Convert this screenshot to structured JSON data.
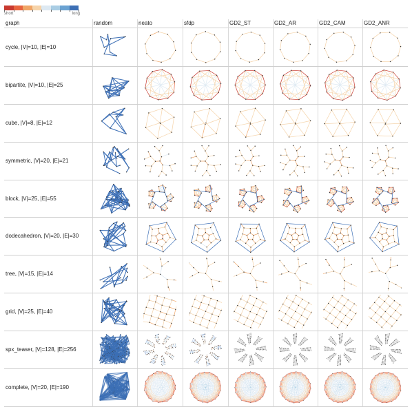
{
  "legend": {
    "short_label": "short",
    "long_label": "long",
    "colors": [
      "#c8392f",
      "#e8643e",
      "#f0a566",
      "#f6d3a9",
      "#dde9f2",
      "#a9cde4",
      "#6aa2d2",
      "#3c6fb5"
    ]
  },
  "columns": [
    {
      "id": "graph",
      "label": "graph"
    },
    {
      "id": "random",
      "label": "random"
    },
    {
      "id": "neato",
      "label": "neato"
    },
    {
      "id": "sfdp",
      "label": "sfdp"
    },
    {
      "id": "gd2_st",
      "label": "GD2_ST"
    },
    {
      "id": "gd2_ar",
      "label": "GD2_AR"
    },
    {
      "id": "gd2_cam",
      "label": "GD2_CAM"
    },
    {
      "id": "gd2_anr",
      "label": "GD2_ANR"
    }
  ],
  "rows": [
    {
      "id": "cycle",
      "label": "cycle, |V|=10, |E|=10"
    },
    {
      "id": "bipartite",
      "label": "bipartite, |V|=10, |E|=25"
    },
    {
      "id": "cube",
      "label": "cube, |V|=8, |E|=12"
    },
    {
      "id": "symmetric",
      "label": "symmetric, |V|=20, |E|=21"
    },
    {
      "id": "block",
      "label": "block, |V|=25, |E|=55"
    },
    {
      "id": "dodecahedron",
      "label": "dodecahedron, |V|=20, |E|=30"
    },
    {
      "id": "tree",
      "label": "tree, |V|=15, |E|=14"
    },
    {
      "id": "grid",
      "label": "grid, |V|=25, |E|=40"
    },
    {
      "id": "spx_teaser",
      "label": "spx_teaser, |V|=128, |E|=256"
    },
    {
      "id": "complete",
      "label": "complete, |V|=20, |E|=190"
    }
  ]
}
